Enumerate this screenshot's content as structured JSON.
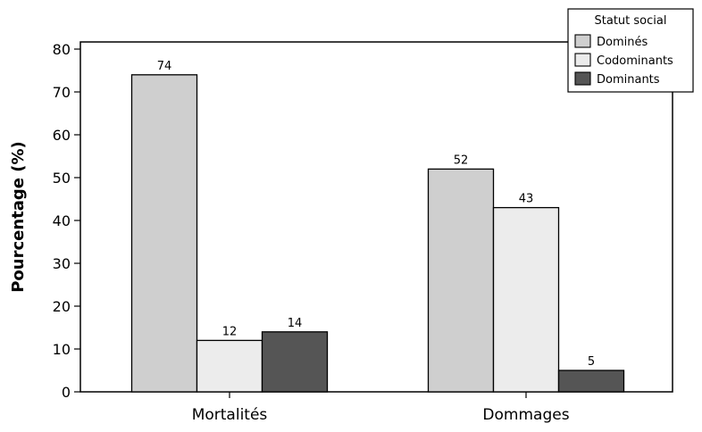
{
  "chart_data": {
    "type": "bar",
    "title": "",
    "xlabel": "",
    "ylabel": "Pourcentage (%)",
    "ylim": [
      0,
      80
    ],
    "yticks": [
      0,
      10,
      20,
      30,
      40,
      50,
      60,
      70,
      80
    ],
    "categories": [
      "Mortalités",
      "Dommages"
    ],
    "legend": {
      "title": "Statut social",
      "position": "top-right"
    },
    "series": [
      {
        "name": "Dominés",
        "values": [
          74,
          52
        ],
        "color": "#cfcfcf"
      },
      {
        "name": "Codominants",
        "values": [
          12,
          43
        ],
        "color": "#ececec"
      },
      {
        "name": "Dominants",
        "values": [
          14,
          5
        ],
        "color": "#555555"
      }
    ],
    "data_labels": true,
    "grid": false
  }
}
